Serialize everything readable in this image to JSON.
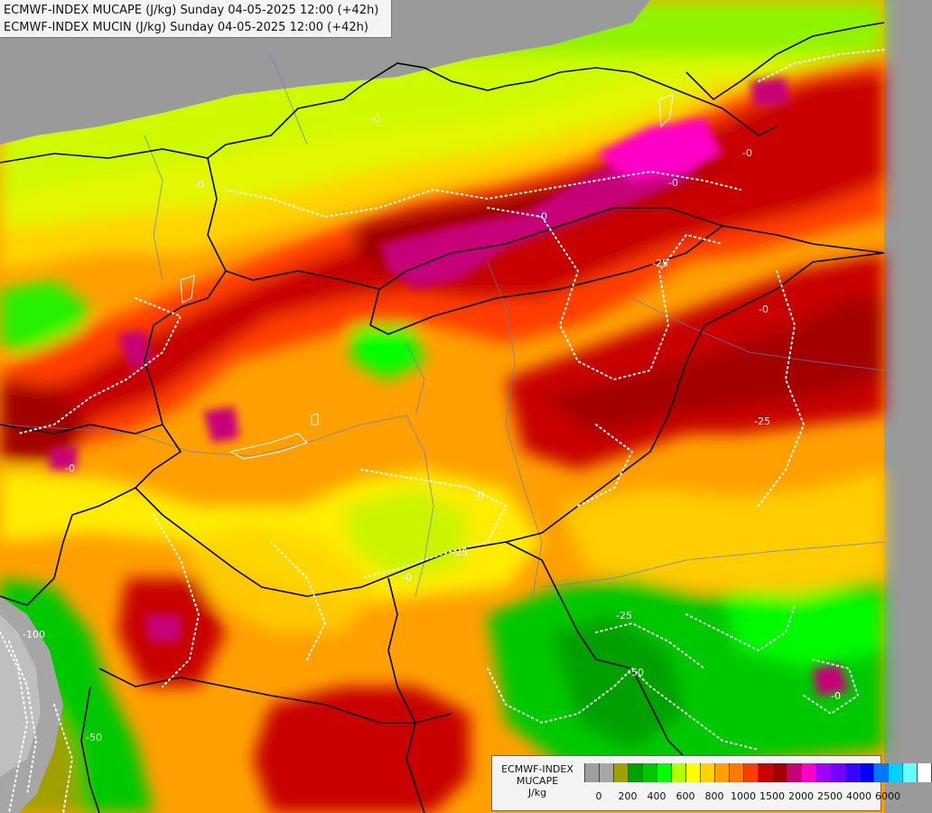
{
  "header": {
    "line1": "ECMWF-INDEX MUCAPE (J/kg) Sunday 04-05-2025 12:00 (+42h)",
    "line2": "ECMWF-INDEX MUCIN (J/kg) Sunday 04-05-2025 12:00 (+42h)"
  },
  "legend": {
    "name_line1": "ECMWF-INDEX",
    "name_line2": "MUCAPE",
    "unit": "J/kg",
    "colors": [
      "#9e9e9e",
      "#a6a6a6",
      "#a0a000",
      "#00a000",
      "#00c800",
      "#00ff00",
      "#b4ff00",
      "#ffff00",
      "#ffd200",
      "#ffa000",
      "#ff7800",
      "#ff3c00",
      "#c80000",
      "#a00000",
      "#c80078",
      "#ff00c8",
      "#a000ff",
      "#7800ff",
      "#3c00ff",
      "#0000ff",
      "#0078ff",
      "#00d2ff",
      "#64ffff",
      "#ffffff"
    ],
    "ticks": [
      {
        "label": "0",
        "slot": 1
      },
      {
        "label": "200",
        "slot": 3
      },
      {
        "label": "400",
        "slot": 5
      },
      {
        "label": "600",
        "slot": 7
      },
      {
        "label": "800",
        "slot": 9
      },
      {
        "label": "1000",
        "slot": 11
      },
      {
        "label": "1500",
        "slot": 13
      },
      {
        "label": "2000",
        "slot": 15
      },
      {
        "label": "2500",
        "slot": 17
      },
      {
        "label": "4000",
        "slot": 19
      },
      {
        "label": "6000",
        "slot": 21
      }
    ]
  },
  "map": {
    "contour_labels": [
      "-0",
      "-0",
      "-0",
      "-0",
      "-0",
      "-0",
      "-0",
      "-0",
      "-0",
      "-0",
      "-25",
      "-25",
      "-25",
      "-25",
      "-50",
      "-50",
      "-100"
    ]
  }
}
